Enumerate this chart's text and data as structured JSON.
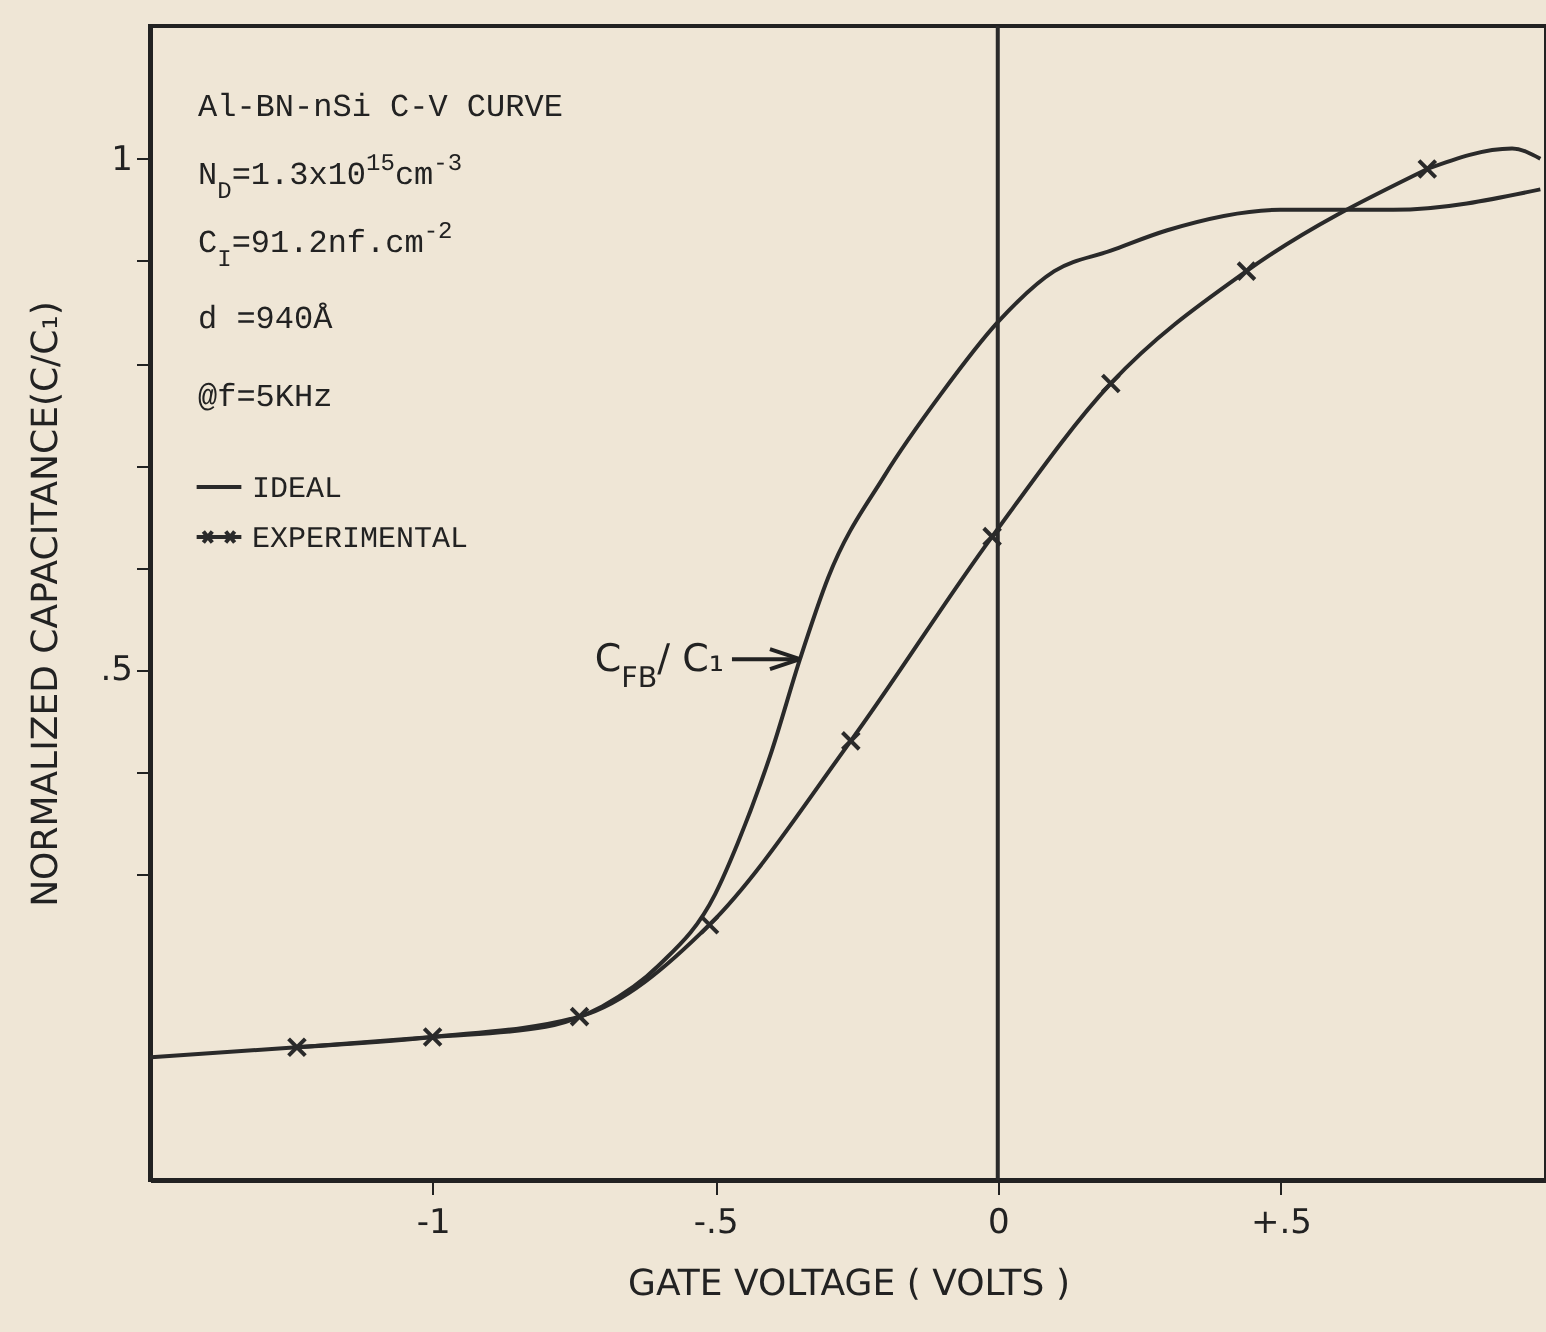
{
  "chart_data": {
    "type": "line",
    "xlabel": "GATE  VOLTAGE ( VOLTS )",
    "ylabel": "NORMALIZED  CAPACITANCE(C/C₁)",
    "xlim": [
      -1.5,
      0.97
    ],
    "ylim": [
      0,
      1.13
    ],
    "xticks": [
      -1,
      {
        "value": -0.5,
        "label": "-.5"
      },
      0,
      {
        "value": 0.5,
        "label": "+.5"
      }
    ],
    "yticks": [
      {
        "value": 0.3,
        "label": null
      },
      {
        "value": 0.4,
        "label": null
      },
      {
        "value": 0.5,
        "label": ".5"
      },
      {
        "value": 0.6,
        "label": null
      },
      {
        "value": 0.7,
        "label": null
      },
      {
        "value": 0.8,
        "label": null
      },
      {
        "value": 0.9,
        "label": null
      },
      1
    ],
    "grid": false,
    "legend": "top left",
    "line_style": "solid",
    "annotations": [
      "Al-BN-nSi C-V CURVE",
      "N$_{D}$=1.3x10$^{15}$cm$^{-3}$",
      "C$_{I}$=91.2nf.cm$^{-2}$",
      "d =940Å",
      "@f=5KHz",
      {
        "text": "C$_{FB}$/ C₁",
        "x": -0.35,
        "y": 0.51
      }
    ],
    "ref_lines": [
      {
        "axis": "x",
        "value": 0,
        "color": "#2a2a2a"
      }
    ],
    "series": [
      {
        "name": "IDEAL",
        "color": "#2a2a2a",
        "x": [
          -1.5,
          -1.24,
          -1.0,
          -0.8,
          -0.7,
          -0.6,
          -0.5,
          -0.46,
          -0.4,
          -0.35,
          -0.3,
          -0.2,
          -0.1,
          0,
          0.1,
          0.2,
          0.3,
          0.5,
          0.7,
          0.96
        ],
        "values": [
          0.12,
          0.13,
          0.14,
          0.15,
          0.17,
          0.21,
          0.28,
          0.33,
          0.42,
          0.51,
          0.59,
          0.69,
          0.77,
          0.84,
          0.89,
          0.91,
          0.93,
          0.95,
          0.95,
          0.97
        ]
      },
      {
        "name": "EXPERIMENTAL",
        "color": "#2a2a2a",
        "marker": "cross",
        "x": [
          -1.24,
          -1.0,
          -0.74,
          -0.51,
          -0.26,
          -0.01,
          0.2,
          0.44,
          0.76
        ],
        "values": [
          0.13,
          0.14,
          0.16,
          0.25,
          0.43,
          0.63,
          0.78,
          0.89,
          0.99
        ]
      },
      {
        "color": "#2a2a2a",
        "x": [
          0.76,
          0.91,
          0.96
        ],
        "values": [
          0.99,
          1.01,
          1.0
        ]
      }
    ]
  }
}
